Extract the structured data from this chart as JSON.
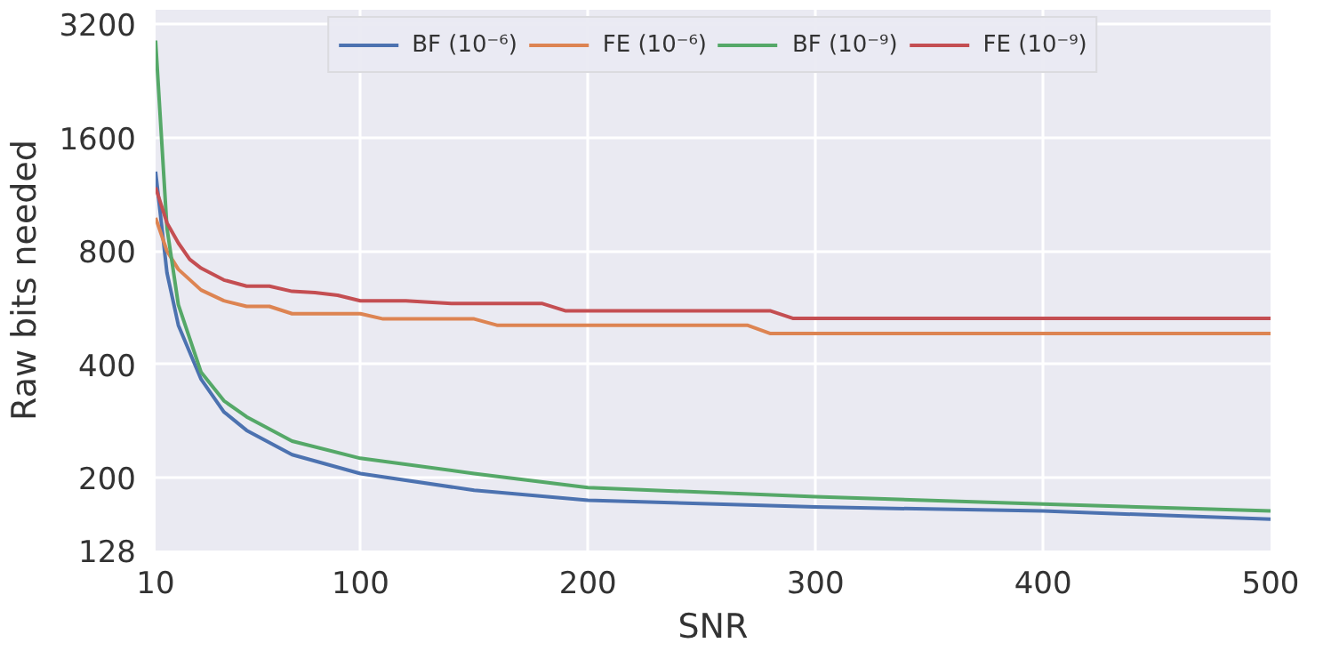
{
  "chart_data": {
    "type": "line",
    "xlabel": "SNR",
    "ylabel": "Raw bits needed",
    "log": "y",
    "grid": true,
    "legend": "top",
    "line_style": "solid",
    "marker": "none",
    "xlim": [
      10,
      500
    ],
    "xticks": [
      10,
      100,
      200,
      300,
      400,
      500
    ],
    "ylim": [
      128,
      3500
    ],
    "yticks": [
      128,
      200,
      400,
      800,
      1600,
      3200
    ],
    "series": [
      {
        "name": "BF (10⁻⁶)",
        "color": "#4c72b0",
        "x": [
          10,
          15,
          20,
          30,
          40,
          50,
          70,
          100,
          150,
          200,
          300,
          400,
          500
        ],
        "values": [
          1300,
          700,
          508,
          365,
          299,
          267,
          230,
          205,
          185,
          174,
          167,
          163,
          155
        ]
      },
      {
        "name": "FE (10⁻⁶)",
        "color": "#dd8452",
        "x": [
          10,
          15,
          20,
          30,
          40,
          50,
          60,
          70,
          90,
          100,
          110,
          150,
          160,
          270,
          280,
          500
        ],
        "values": [
          980,
          800,
          715,
          630,
          590,
          570,
          570,
          545,
          545,
          545,
          528,
          528,
          508,
          508,
          483,
          483
        ]
      },
      {
        "name": "BF (10⁻⁹)",
        "color": "#55a868",
        "x": [
          10,
          15,
          20,
          30,
          40,
          50,
          70,
          100,
          150,
          200,
          300,
          400,
          500
        ],
        "values": [
          2900,
          920,
          576,
          381,
          320,
          290,
          250,
          225,
          205,
          188,
          178,
          170,
          163
        ]
      },
      {
        "name": "FE (10⁻⁹)",
        "color": "#c44e52",
        "x": [
          10,
          15,
          20,
          25,
          30,
          40,
          50,
          60,
          70,
          80,
          90,
          100,
          120,
          140,
          180,
          190,
          280,
          290,
          500
        ],
        "values": [
          1180,
          950,
          840,
          760,
          720,
          670,
          645,
          645,
          625,
          620,
          610,
          590,
          590,
          580,
          580,
          555,
          555,
          530,
          530
        ]
      }
    ]
  }
}
